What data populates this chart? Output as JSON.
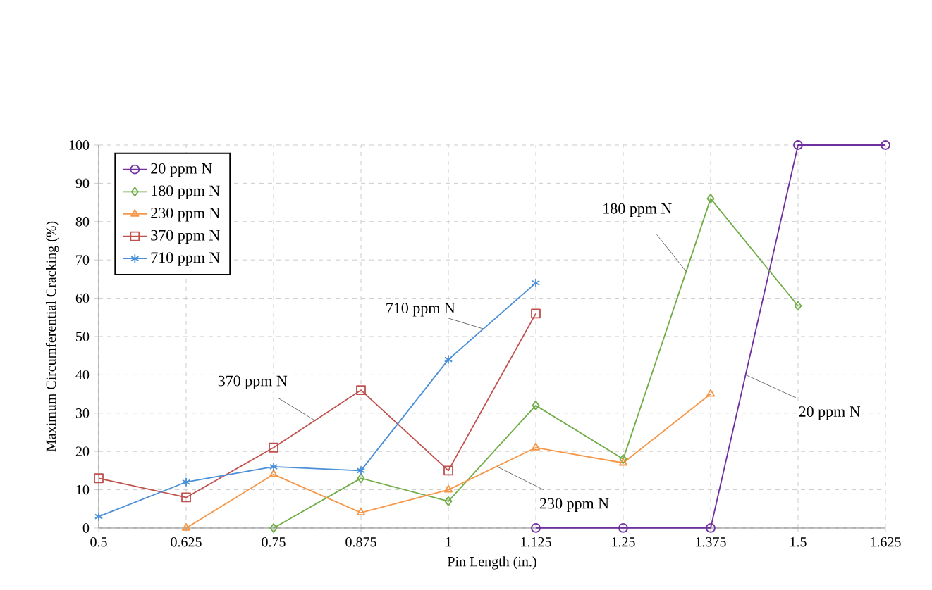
{
  "chart_data": {
    "type": "line",
    "xlabel": "Pin Length (in.)",
    "ylabel": "Maximum Circumferential Cracking (%)",
    "xlim": [
      0.5,
      1.625
    ],
    "ylim": [
      0,
      100
    ],
    "xticks": [
      0.5,
      0.625,
      0.75,
      0.875,
      1,
      1.125,
      1.25,
      1.375,
      1.5,
      1.625
    ],
    "yticks": [
      0,
      10,
      20,
      30,
      40,
      50,
      60,
      70,
      80,
      90,
      100
    ],
    "grid": true,
    "legend": "top left",
    "line_style": "solid",
    "series": [
      {
        "name": "20 ppm N",
        "color": "#7030a0",
        "marker": "circle",
        "x": [
          1.125,
          1.25,
          1.375,
          1.5,
          1.625
        ],
        "values": [
          0,
          0,
          0,
          100,
          100
        ]
      },
      {
        "name": "180 ppm N",
        "color": "#70ad47",
        "marker": "diamond",
        "x": [
          0.75,
          0.875,
          1,
          1.125,
          1.25,
          1.375,
          1.5
        ],
        "values": [
          0,
          13,
          7,
          32,
          18,
          86,
          58
        ]
      },
      {
        "name": "230 ppm N",
        "color": "#f79646",
        "marker": "triangle",
        "x": [
          0.625,
          0.75,
          0.875,
          1,
          1.125,
          1.25,
          1.375
        ],
        "values": [
          0,
          14,
          4,
          10,
          21,
          17,
          35
        ]
      },
      {
        "name": "370 ppm N",
        "color": "#c0504d",
        "marker": "square",
        "x": [
          0.5,
          0.625,
          0.75,
          0.875,
          1,
          1.125
        ],
        "values": [
          13,
          8,
          21,
          36,
          15,
          56
        ]
      },
      {
        "name": "710 ppm N",
        "color": "#4a8fd8",
        "marker": "cross",
        "x": [
          0.5,
          0.625,
          0.75,
          0.875,
          1,
          1.125
        ],
        "values": [
          3,
          12,
          16,
          15,
          44,
          64
        ]
      }
    ],
    "annotations": [
      {
        "text": "710 ppm N",
        "x": 1.05,
        "y": 52
      },
      {
        "text": "370 ppm N",
        "x": 0.81,
        "y": 28
      },
      {
        "text": "230 ppm N",
        "x": 1.07,
        "y": 16
      },
      {
        "text": "180 ppm N",
        "x": 1.34,
        "y": 67
      },
      {
        "text": "20 ppm N",
        "x": 1.425,
        "y": 40
      }
    ]
  }
}
